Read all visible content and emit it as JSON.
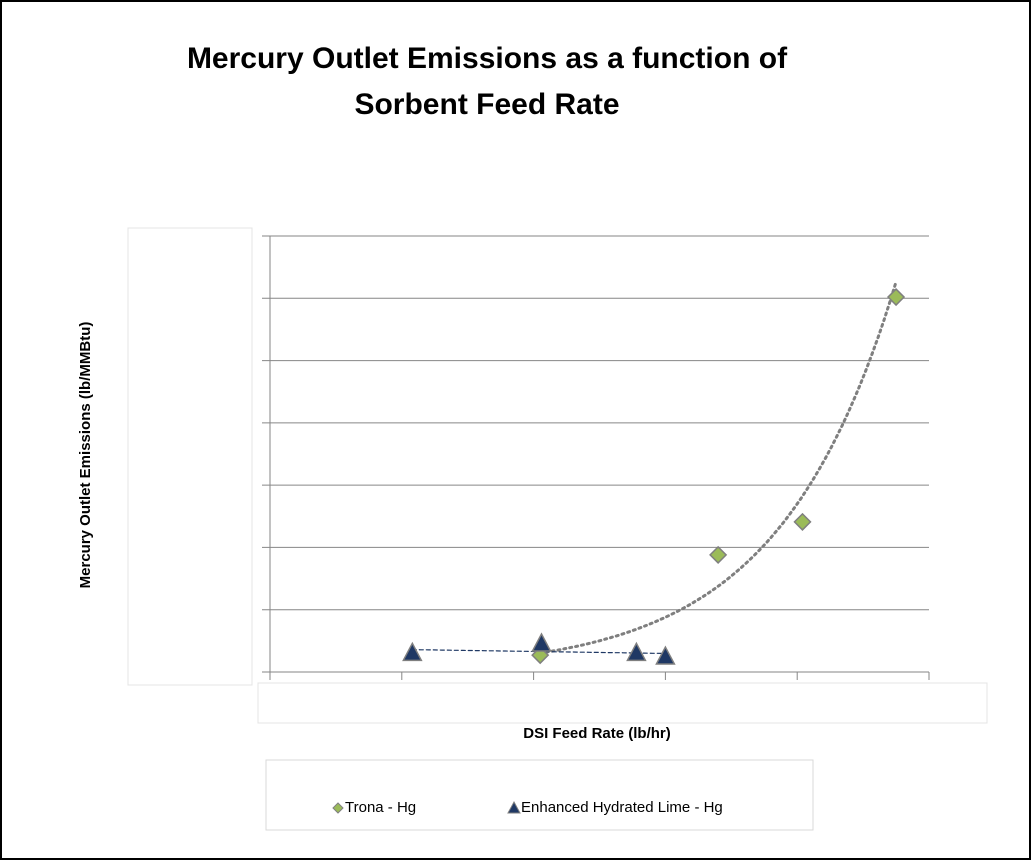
{
  "chart_data": {
    "type": "scatter",
    "title": "Mercury Outlet Emissions as a function of",
    "title_line2": "Sorbent Feed Rate",
    "xlabel": "DSI Feed Rate (lb/hr)",
    "ylabel": "Mercury Outlet Emissions (lb/MMBtu)",
    "xlim": [
      0,
      5
    ],
    "xticks": [
      0,
      1,
      2,
      3,
      4,
      5
    ],
    "ylim": [
      0,
      7
    ],
    "yticks": [
      0,
      1,
      2,
      3,
      4,
      5,
      6,
      7
    ],
    "grid": true,
    "legend": "bottom",
    "series": [
      {
        "name": "Trona - Hg",
        "color": "#9bbb59",
        "marker": "diamond",
        "trendline": "exponential",
        "x": [
          2.05,
          3.4,
          4.04,
          4.75
        ],
        "values": [
          0.27,
          1.88,
          2.41,
          6.02
        ]
      },
      {
        "name": "Enhanced Hydrated Lime - Hg",
        "color": "#1f3864",
        "marker": "triangle",
        "trendline": "linear",
        "x": [
          1.08,
          2.06,
          2.78,
          3.0
        ],
        "values": [
          0.3,
          0.45,
          0.3,
          0.24
        ]
      }
    ]
  }
}
